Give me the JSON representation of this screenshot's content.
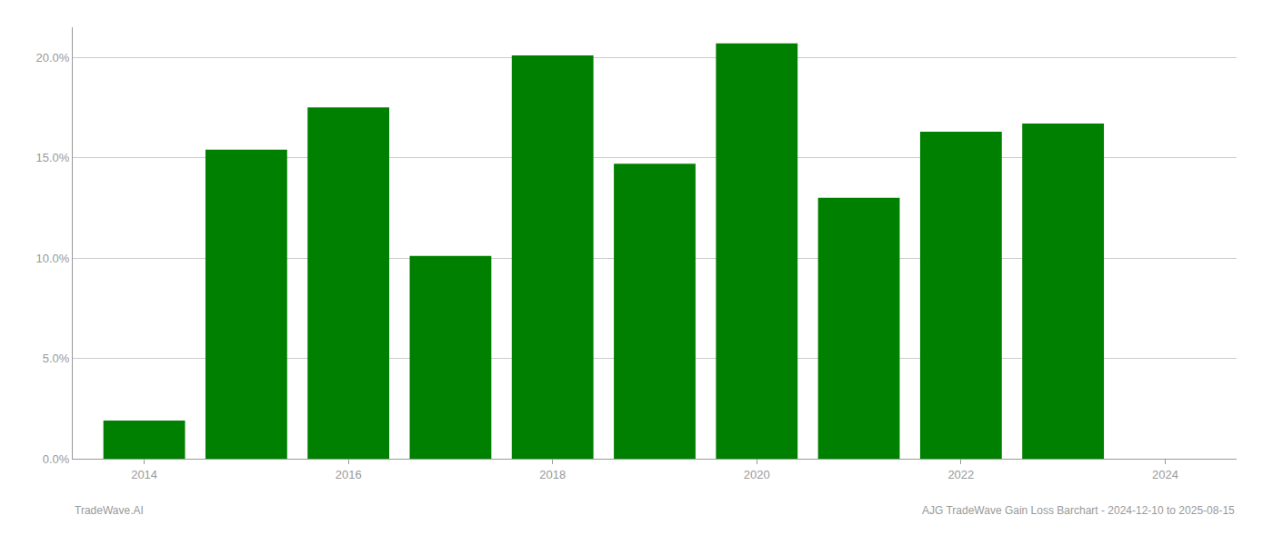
{
  "chart_data": {
    "type": "bar",
    "x": [
      2014,
      2015,
      2016,
      2017,
      2018,
      2019,
      2020,
      2021,
      2022,
      2023
    ],
    "values": [
      1.9,
      15.4,
      17.5,
      10.1,
      20.1,
      14.7,
      20.7,
      13.0,
      16.3,
      16.7
    ],
    "color": "#008000",
    "xlim": [
      2013.3,
      2024.7
    ],
    "xticks": [
      2014,
      2016,
      2018,
      2020,
      2022,
      2024
    ],
    "ylim": [
      0,
      21.5
    ],
    "yticks": [
      {
        "value": 0.0,
        "label": "0.0%"
      },
      {
        "value": 5.0,
        "label": "5.0%"
      },
      {
        "value": 10.0,
        "label": "10.0%"
      },
      {
        "value": 15.0,
        "label": "15.0%"
      },
      {
        "value": 20.0,
        "label": "20.0%"
      }
    ],
    "grid": true,
    "annotations": [
      "TradeWave.AI",
      "AJG TradeWave Gain Loss Barchart - 2024-12-10 to 2025-08-15"
    ]
  }
}
